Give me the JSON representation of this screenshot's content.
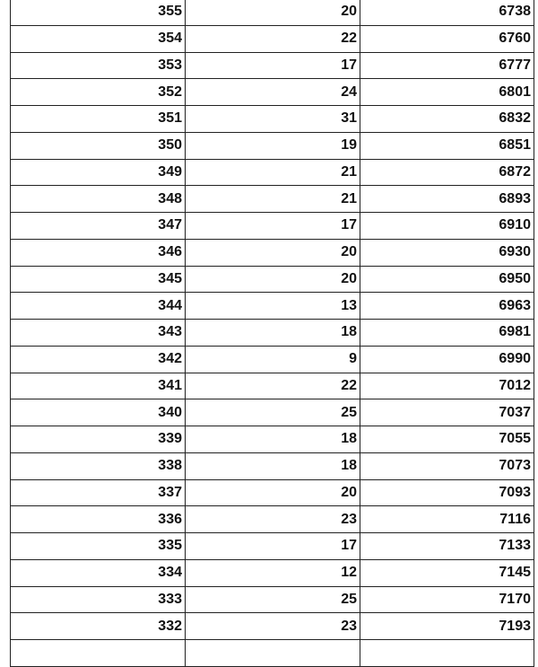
{
  "rows": [
    [
      "355",
      "20",
      "6738"
    ],
    [
      "354",
      "22",
      "6760"
    ],
    [
      "353",
      "17",
      "6777"
    ],
    [
      "352",
      "24",
      "6801"
    ],
    [
      "351",
      "31",
      "6832"
    ],
    [
      "350",
      "19",
      "6851"
    ],
    [
      "349",
      "21",
      "6872"
    ],
    [
      "348",
      "21",
      "6893"
    ],
    [
      "347",
      "17",
      "6910"
    ],
    [
      "346",
      "20",
      "6930"
    ],
    [
      "345",
      "20",
      "6950"
    ],
    [
      "344",
      "13",
      "6963"
    ],
    [
      "343",
      "18",
      "6981"
    ],
    [
      "342",
      "9",
      "6990"
    ],
    [
      "341",
      "22",
      "7012"
    ],
    [
      "340",
      "25",
      "7037"
    ],
    [
      "339",
      "18",
      "7055"
    ],
    [
      "338",
      "18",
      "7073"
    ],
    [
      "337",
      "20",
      "7093"
    ],
    [
      "336",
      "23",
      "7116"
    ],
    [
      "335",
      "17",
      "7133"
    ],
    [
      "334",
      "12",
      "7145"
    ],
    [
      "333",
      "25",
      "7170"
    ],
    [
      "332",
      "23",
      "7193"
    ],
    [
      "",
      "",
      ""
    ]
  ]
}
